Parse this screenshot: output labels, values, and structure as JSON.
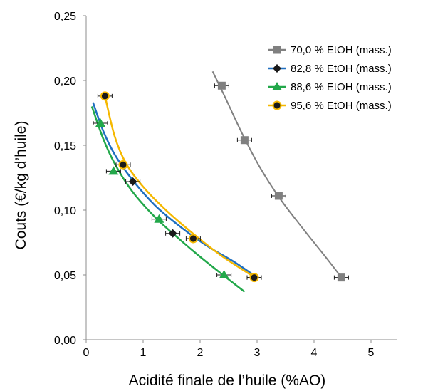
{
  "chart_data": {
    "type": "scatter",
    "xlabel": "Acidité finale de l’huile (%AO)",
    "ylabel": "Couts (€/kg d’huile)",
    "xlim": [
      0,
      5.5
    ],
    "ylim": [
      0,
      0.25
    ],
    "x_ticks": [
      "0",
      "1",
      "2",
      "3",
      "4",
      "5"
    ],
    "y_ticks": [
      "0,00",
      "0,05",
      "0,10",
      "0,15",
      "0,20",
      "0,25"
    ],
    "grid": false,
    "legend_position": "top-right",
    "series": [
      {
        "name": "70,0 % EtOH (mass.)",
        "color": "#808080",
        "marker": "square",
        "points": [
          [
            2.38,
            0.196
          ],
          [
            2.78,
            0.154
          ],
          [
            3.38,
            0.111
          ],
          [
            4.48,
            0.048
          ]
        ],
        "fit": [
          [
            2.22,
            0.207
          ],
          [
            2.45,
            0.186
          ],
          [
            2.75,
            0.158
          ],
          [
            3.05,
            0.133
          ],
          [
            3.4,
            0.109
          ],
          [
            3.8,
            0.086
          ],
          [
            4.2,
            0.064
          ],
          [
            4.5,
            0.047
          ]
        ]
      },
      {
        "name": "82,8 % EtOH (mass.)",
        "color": "#1f6fc0",
        "marker": "diamond",
        "points": [
          [
            0.82,
            0.122
          ],
          [
            1.52,
            0.082
          ],
          [
            2.95,
            0.048
          ]
        ],
        "fit": [
          [
            0.12,
            0.183
          ],
          [
            0.3,
            0.161
          ],
          [
            0.5,
            0.143
          ],
          [
            0.8,
            0.124
          ],
          [
            1.2,
            0.104
          ],
          [
            1.6,
            0.089
          ],
          [
            2.1,
            0.073
          ],
          [
            2.6,
            0.06
          ],
          [
            3.0,
            0.048
          ]
        ]
      },
      {
        "name": "88,6 % EtOH (mass.)",
        "color": "#22a84a",
        "marker": "triangle",
        "points": [
          [
            0.25,
            0.167
          ],
          [
            0.48,
            0.13
          ],
          [
            1.28,
            0.093
          ],
          [
            2.42,
            0.05
          ]
        ],
        "fit": [
          [
            0.1,
            0.18
          ],
          [
            0.3,
            0.155
          ],
          [
            0.5,
            0.136
          ],
          [
            0.8,
            0.115
          ],
          [
            1.2,
            0.095
          ],
          [
            1.6,
            0.079
          ],
          [
            2.0,
            0.064
          ],
          [
            2.4,
            0.05
          ],
          [
            2.78,
            0.037
          ]
        ]
      },
      {
        "name": "95,6 % EtOH (mass.)",
        "color": "#f5b800",
        "marker": "circle",
        "points": [
          [
            0.33,
            0.188
          ],
          [
            0.65,
            0.135
          ],
          [
            1.88,
            0.078
          ],
          [
            2.95,
            0.048
          ]
        ],
        "fit": [
          [
            0.33,
            0.188
          ],
          [
            0.5,
            0.157
          ],
          [
            0.7,
            0.136
          ],
          [
            1.0,
            0.118
          ],
          [
            1.4,
            0.1
          ],
          [
            1.9,
            0.081
          ],
          [
            2.4,
            0.064
          ],
          [
            3.0,
            0.047
          ]
        ]
      }
    ]
  }
}
